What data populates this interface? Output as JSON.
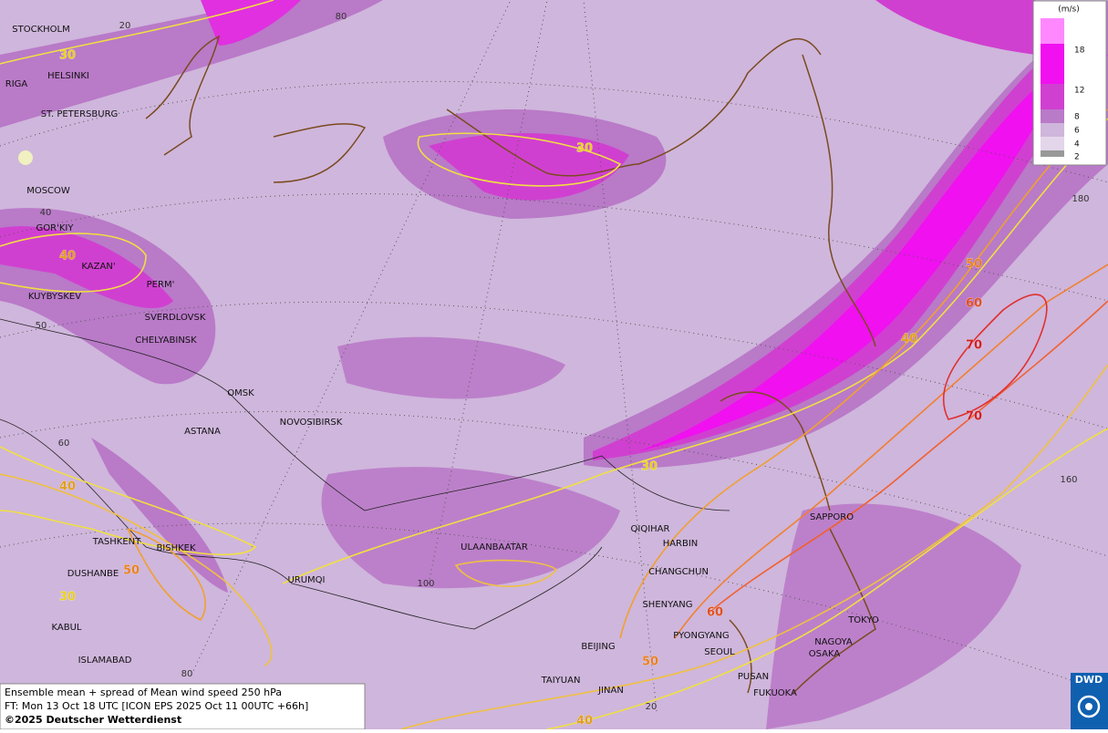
{
  "footer": {
    "line1": "Ensemble mean + spread of Mean wind speed 250 hPa",
    "line2": "FT: Mon 13 Oct 18 UTC [ICON EPS 2025 Oct 11 00UTC +66h]",
    "line3": "©2025 Deutscher Wetterdienst"
  },
  "logo": "DWD",
  "legend": {
    "unit": "(m/s)",
    "ticks": [
      18,
      12,
      8,
      6,
      4,
      2
    ]
  },
  "cities": [
    "STOCKHOLM",
    "HELSINKI",
    "RIGA",
    "ST. PETERSBURG",
    "MOSCOW",
    "GOR'KIY",
    "KAZAN'",
    "PERM'",
    "KUYBYSKEV",
    "SVERDLOVSK",
    "CHELYABINSK",
    "OMSK",
    "ASTANA",
    "NOVOSIBIRSK",
    "TASHKENT",
    "BISHKEK",
    "DUSHANBE",
    "URUMQI",
    "KABUL",
    "ISLAMABAD",
    "ULAANBAATAR",
    "QIQIHAR",
    "HARBIN",
    "CHANGCHUN",
    "SHENYANG",
    "PYONGYANG",
    "BEIJING",
    "SEOUL",
    "TAIYUAN",
    "JINAN",
    "PUSAN",
    "FUKUOKA",
    "SAPPORO",
    "TOKYO",
    "NAGOYA",
    "OSAKA"
  ],
  "contour_labels": [
    {
      "value": 30,
      "color": "#e8d020"
    },
    {
      "value": 30,
      "color": "#e8d020"
    },
    {
      "value": 40,
      "color": "#e0a020"
    },
    {
      "value": 50,
      "color": "#e88020"
    },
    {
      "value": 60,
      "color": "#e05020"
    },
    {
      "value": 70,
      "color": "#d02020"
    },
    {
      "value": 40,
      "color": "#e0a020"
    },
    {
      "value": 70,
      "color": "#d02020"
    },
    {
      "value": 30,
      "color": "#e8d020"
    },
    {
      "value": 40,
      "color": "#e0a020"
    },
    {
      "value": 50,
      "color": "#e88020"
    },
    {
      "value": 30,
      "color": "#e8d020"
    },
    {
      "value": 60,
      "color": "#e05020"
    },
    {
      "value": 50,
      "color": "#e88020"
    },
    {
      "value": 40,
      "color": "#e0a020"
    }
  ],
  "grid_labels": [
    20,
    80,
    40,
    50,
    60,
    100,
    80,
    20,
    180,
    160
  ]
}
